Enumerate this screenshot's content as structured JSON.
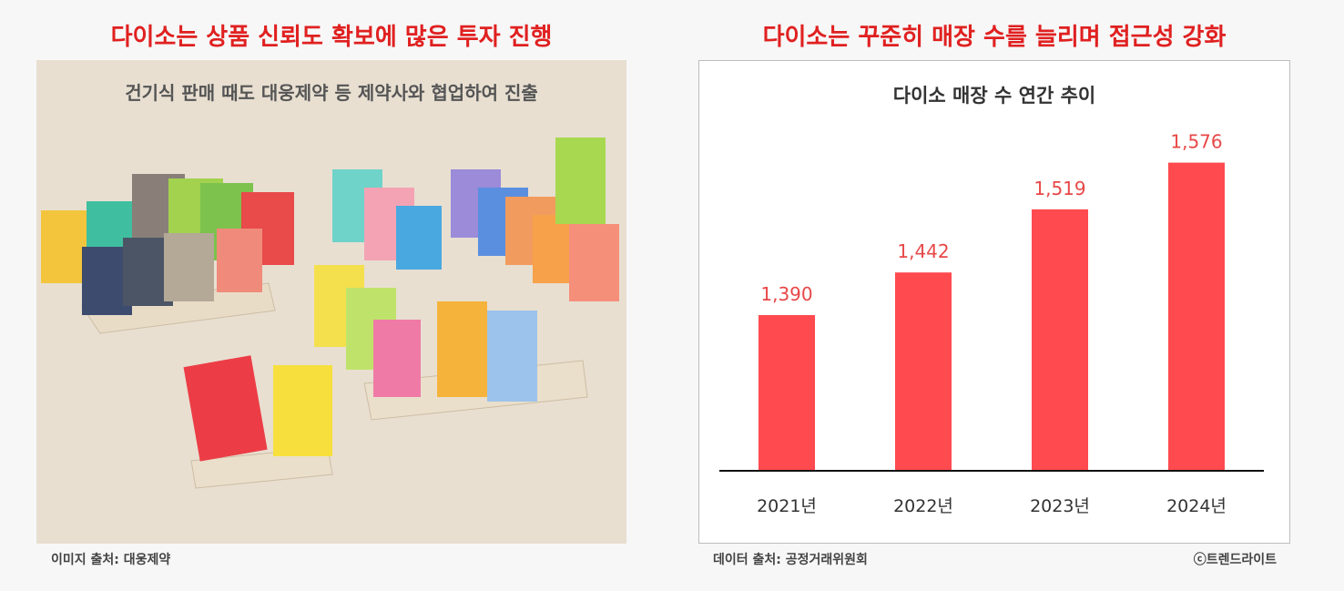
{
  "left": {
    "title": "다이소는 상품 신뢰도 확보에 많은 투자 진행",
    "photo_caption": "건기식 판매 때도 대웅제약 등 제약사와 협업하여 진출",
    "source": "이미지 출처: 대웅제약"
  },
  "right": {
    "title": "다이소는 꾸준히 매장 수를 늘리며 접근성 강화",
    "source": "데이터 출처: 공정거래위원회",
    "copyright": "ⓒ트렌드라이트"
  },
  "colors": {
    "headline": "#e02020",
    "bar": "#ff4a4f",
    "data_label": "#e84747"
  },
  "chart_data": {
    "type": "bar",
    "title": "다이소 매장 수 연간 추이",
    "categories": [
      "2021년",
      "2022년",
      "2023년",
      "2024년"
    ],
    "values": [
      1390,
      1442,
      1519,
      1576
    ],
    "value_labels": [
      "1,390",
      "1,442",
      "1,519",
      "1,576"
    ],
    "ylim": [
      1200,
      1600
    ],
    "grid": false,
    "legend": "none",
    "xlabel": "",
    "ylabel": ""
  }
}
